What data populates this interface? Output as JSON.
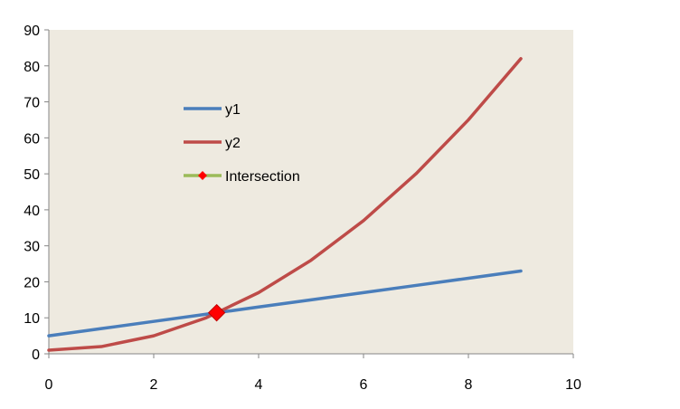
{
  "chart_data": {
    "type": "line",
    "title": "",
    "xlabel": "",
    "ylabel": "",
    "xlim": [
      0,
      10
    ],
    "ylim": [
      0,
      90
    ],
    "x_ticks": [
      "0",
      "2",
      "4",
      "6",
      "8",
      "10"
    ],
    "y_ticks": [
      "0",
      "10",
      "20",
      "30",
      "40",
      "50",
      "60",
      "70",
      "80",
      "90"
    ],
    "grid": false,
    "plot_background": "#EEEAE0",
    "legend_position": "upper-left-inside",
    "series": [
      {
        "name": "y1",
        "color": "#4A7EBB",
        "x": [
          0,
          1,
          2,
          3,
          4,
          5,
          6,
          7,
          8,
          9
        ],
        "y": [
          5,
          7,
          9,
          11,
          13,
          15,
          17,
          19,
          21,
          23
        ]
      },
      {
        "name": "y2",
        "color": "#BE4B48",
        "x": [
          0,
          1,
          2,
          3,
          4,
          5,
          6,
          7,
          8,
          9
        ],
        "y": [
          1,
          2,
          5,
          10,
          17,
          26,
          37,
          50,
          65,
          82
        ]
      },
      {
        "name": "Intersection",
        "color": "#FF0000",
        "line_color": "#9BBB59",
        "marker": "diamond",
        "x": [
          3.2
        ],
        "y": [
          11.4
        ]
      }
    ]
  }
}
